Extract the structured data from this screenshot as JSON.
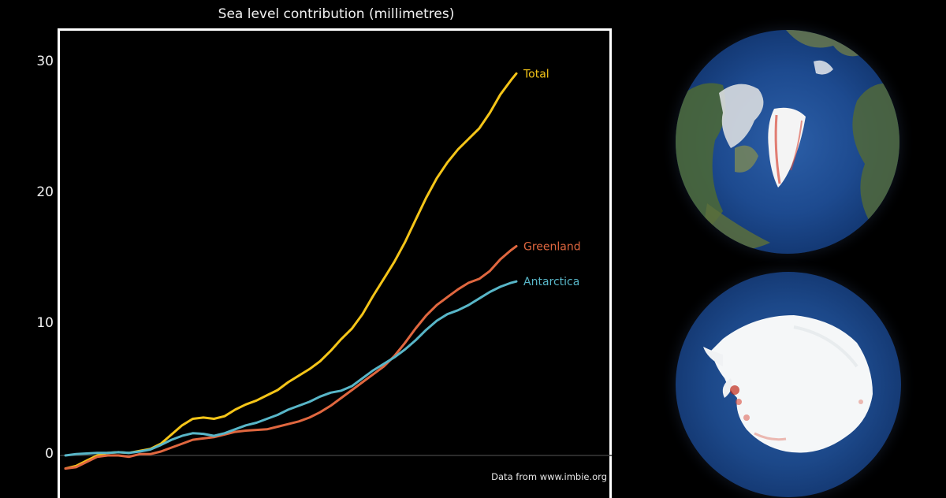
{
  "chart_data": {
    "type": "line",
    "title": "Sea level contribution (millimetres)",
    "ylim": [
      -1.5,
      33
    ],
    "yticks": [
      0,
      10,
      20,
      30
    ],
    "grid": false,
    "source_note": "Data from www.imbie.org",
    "series": [
      {
        "name": "Total",
        "color": "#f5c518",
        "points": [
          [
            0,
            -1.0
          ],
          [
            2,
            -0.8
          ],
          [
            4,
            -0.4
          ],
          [
            6,
            0.0
          ],
          [
            8,
            0.2
          ],
          [
            10,
            0.25
          ],
          [
            12,
            0.2
          ],
          [
            14,
            0.35
          ],
          [
            16,
            0.5
          ],
          [
            18,
            0.9
          ],
          [
            20,
            1.6
          ],
          [
            22,
            2.3
          ],
          [
            24,
            2.8
          ],
          [
            26,
            2.9
          ],
          [
            28,
            2.8
          ],
          [
            30,
            3.0
          ],
          [
            32,
            3.5
          ],
          [
            34,
            3.9
          ],
          [
            36,
            4.2
          ],
          [
            38,
            4.6
          ],
          [
            40,
            5.0
          ],
          [
            42,
            5.6
          ],
          [
            44,
            6.1
          ],
          [
            46,
            6.6
          ],
          [
            48,
            7.2
          ],
          [
            50,
            8.0
          ],
          [
            52,
            8.9
          ],
          [
            54,
            9.7
          ],
          [
            56,
            10.8
          ],
          [
            58,
            12.2
          ],
          [
            60,
            13.5
          ],
          [
            62,
            14.8
          ],
          [
            64,
            16.3
          ],
          [
            66,
            18.0
          ],
          [
            68,
            19.7
          ],
          [
            70,
            21.2
          ],
          [
            72,
            22.4
          ],
          [
            74,
            23.4
          ],
          [
            76,
            24.2
          ],
          [
            78,
            25.0
          ],
          [
            80,
            26.2
          ],
          [
            82,
            27.6
          ],
          [
            84,
            28.7
          ],
          [
            85,
            29.2
          ]
        ]
      },
      {
        "name": "Greenland",
        "color": "#e0673f",
        "points": [
          [
            0,
            -1.0
          ],
          [
            2,
            -0.9
          ],
          [
            4,
            -0.5
          ],
          [
            6,
            -0.1
          ],
          [
            8,
            0.0
          ],
          [
            10,
            0.0
          ],
          [
            12,
            -0.1
          ],
          [
            14,
            0.1
          ],
          [
            16,
            0.1
          ],
          [
            18,
            0.3
          ],
          [
            20,
            0.6
          ],
          [
            22,
            0.9
          ],
          [
            24,
            1.2
          ],
          [
            26,
            1.3
          ],
          [
            28,
            1.4
          ],
          [
            30,
            1.6
          ],
          [
            32,
            1.8
          ],
          [
            34,
            1.9
          ],
          [
            36,
            1.95
          ],
          [
            38,
            2.0
          ],
          [
            40,
            2.2
          ],
          [
            42,
            2.4
          ],
          [
            44,
            2.6
          ],
          [
            46,
            2.9
          ],
          [
            48,
            3.3
          ],
          [
            50,
            3.8
          ],
          [
            52,
            4.4
          ],
          [
            54,
            5.0
          ],
          [
            56,
            5.6
          ],
          [
            58,
            6.2
          ],
          [
            60,
            6.8
          ],
          [
            62,
            7.6
          ],
          [
            64,
            8.6
          ],
          [
            66,
            9.7
          ],
          [
            68,
            10.7
          ],
          [
            70,
            11.5
          ],
          [
            72,
            12.1
          ],
          [
            74,
            12.7
          ],
          [
            76,
            13.2
          ],
          [
            78,
            13.5
          ],
          [
            80,
            14.1
          ],
          [
            82,
            15.0
          ],
          [
            84,
            15.7
          ],
          [
            85,
            16.0
          ]
        ]
      },
      {
        "name": "Antarctica",
        "color": "#58b6c8",
        "points": [
          [
            0,
            0.0
          ],
          [
            2,
            0.1
          ],
          [
            4,
            0.15
          ],
          [
            6,
            0.2
          ],
          [
            8,
            0.2
          ],
          [
            10,
            0.25
          ],
          [
            12,
            0.2
          ],
          [
            14,
            0.3
          ],
          [
            16,
            0.45
          ],
          [
            18,
            0.8
          ],
          [
            20,
            1.2
          ],
          [
            22,
            1.5
          ],
          [
            24,
            1.7
          ],
          [
            26,
            1.65
          ],
          [
            28,
            1.5
          ],
          [
            30,
            1.7
          ],
          [
            32,
            2.0
          ],
          [
            34,
            2.3
          ],
          [
            36,
            2.5
          ],
          [
            38,
            2.8
          ],
          [
            40,
            3.1
          ],
          [
            42,
            3.5
          ],
          [
            44,
            3.8
          ],
          [
            46,
            4.1
          ],
          [
            48,
            4.5
          ],
          [
            50,
            4.8
          ],
          [
            52,
            4.95
          ],
          [
            54,
            5.3
          ],
          [
            56,
            5.9
          ],
          [
            58,
            6.5
          ],
          [
            60,
            7.0
          ],
          [
            62,
            7.5
          ],
          [
            64,
            8.1
          ],
          [
            66,
            8.8
          ],
          [
            68,
            9.6
          ],
          [
            70,
            10.3
          ],
          [
            72,
            10.8
          ],
          [
            74,
            11.1
          ],
          [
            76,
            11.5
          ],
          [
            78,
            12.0
          ],
          [
            80,
            12.5
          ],
          [
            82,
            12.9
          ],
          [
            84,
            13.2
          ],
          [
            85,
            13.3
          ]
        ]
      }
    ]
  },
  "images": {
    "top_globe": "arctic-globe-greenland-ice",
    "bottom_globe": "antarctic-globe-ice-sheet"
  }
}
